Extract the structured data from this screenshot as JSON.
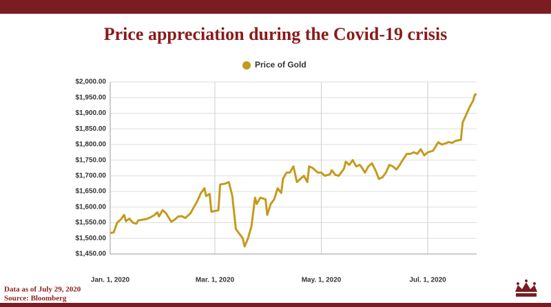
{
  "chart_data": {
    "type": "line",
    "title": "Price appreciation during the Covid-19 crisis",
    "notes": [
      "Data as of July 29, 2020",
      "Source: Bloomberg"
    ],
    "legend": "top",
    "grid": true,
    "xlim": [
      "2020-01-01",
      "2020-07-29"
    ],
    "xticks": [
      {
        "value": "2020-01-01",
        "label": "Jan. 1, 2020"
      },
      {
        "value": "2020-03-01",
        "label": "Mar. 1, 2020"
      },
      {
        "value": "2020-05-01",
        "label": "May. 1, 2020"
      },
      {
        "value": "2020-07-01",
        "label": "Jul. 1, 2020"
      }
    ],
    "ylim": [
      1450,
      2000
    ],
    "yticks": [
      {
        "value": 1450,
        "label": "$1,450.00"
      },
      {
        "value": 1500,
        "label": "$1,500.00"
      },
      {
        "value": 1550,
        "label": "$1,550.00"
      },
      {
        "value": 1600,
        "label": "$1,600.00"
      },
      {
        "value": 1650,
        "label": "$1,650.00"
      },
      {
        "value": 1700,
        "label": "$1,700.00"
      },
      {
        "value": 1750,
        "label": "$1,750.00"
      },
      {
        "value": 1800,
        "label": "$1,800.00"
      },
      {
        "value": 1850,
        "label": "$1,850.00"
      },
      {
        "value": 1900,
        "label": "$1,900.00"
      },
      {
        "value": 1950,
        "label": "$1,950.00"
      },
      {
        "value": 2000,
        "label": "$2,000.00"
      }
    ],
    "x": [
      "2020-01-01",
      "2020-01-03",
      "2020-01-05",
      "2020-01-07",
      "2020-01-09",
      "2020-01-10",
      "2020-01-12",
      "2020-01-14",
      "2020-01-16",
      "2020-01-17",
      "2020-01-20",
      "2020-01-22",
      "2020-01-24",
      "2020-01-26",
      "2020-01-28",
      "2020-01-29",
      "2020-01-31",
      "2020-02-02",
      "2020-02-05",
      "2020-02-07",
      "2020-02-09",
      "2020-02-11",
      "2020-02-13",
      "2020-02-16",
      "2020-02-18",
      "2020-02-20",
      "2020-02-22",
      "2020-02-24",
      "2020-02-25",
      "2020-02-27",
      "2020-02-28",
      "2020-03-03",
      "2020-03-04",
      "2020-03-07",
      "2020-03-09",
      "2020-03-11",
      "2020-03-13",
      "2020-03-15",
      "2020-03-17",
      "2020-03-18",
      "2020-03-20",
      "2020-03-22",
      "2020-03-24",
      "2020-03-25",
      "2020-03-27",
      "2020-03-30",
      "2020-03-31",
      "2020-04-02",
      "2020-04-04",
      "2020-04-06",
      "2020-04-08",
      "2020-04-09",
      "2020-04-11",
      "2020-04-13",
      "2020-04-15",
      "2020-04-17",
      "2020-04-19",
      "2020-04-21",
      "2020-04-23",
      "2020-04-24",
      "2020-04-26",
      "2020-04-29",
      "2020-05-01",
      "2020-05-03",
      "2020-05-06",
      "2020-05-07",
      "2020-05-09",
      "2020-05-11",
      "2020-05-14",
      "2020-05-15",
      "2020-05-17",
      "2020-05-19",
      "2020-05-21",
      "2020-05-23",
      "2020-05-24",
      "2020-05-26",
      "2020-05-28",
      "2020-05-30",
      "2020-06-01",
      "2020-06-03",
      "2020-06-05",
      "2020-06-07",
      "2020-06-09",
      "2020-06-11",
      "2020-06-13",
      "2020-06-15",
      "2020-06-16",
      "2020-06-19",
      "2020-06-21",
      "2020-06-23",
      "2020-06-25",
      "2020-06-27",
      "2020-06-29",
      "2020-07-01",
      "2020-07-04",
      "2020-07-07",
      "2020-07-09",
      "2020-07-11",
      "2020-07-13",
      "2020-07-15",
      "2020-07-17",
      "2020-07-20",
      "2020-07-21",
      "2020-07-23",
      "2020-07-25",
      "2020-07-27",
      "2020-07-28",
      "2020-07-29"
    ],
    "series": [
      {
        "name": "Price of Gold",
        "color": "#c49a1c",
        "values": [
          1517,
          1519,
          1550,
          1560,
          1575,
          1555,
          1563,
          1550,
          1547,
          1557,
          1560,
          1562,
          1567,
          1573,
          1583,
          1570,
          1590,
          1580,
          1553,
          1560,
          1570,
          1571,
          1565,
          1580,
          1600,
          1620,
          1645,
          1660,
          1635,
          1642,
          1585,
          1590,
          1672,
          1675,
          1680,
          1635,
          1530,
          1515,
          1500,
          1474,
          1500,
          1540,
          1630,
          1610,
          1630,
          1625,
          1575,
          1610,
          1625,
          1660,
          1645,
          1690,
          1710,
          1710,
          1730,
          1680,
          1690,
          1700,
          1680,
          1730,
          1725,
          1710,
          1710,
          1700,
          1705,
          1718,
          1703,
          1700,
          1723,
          1745,
          1735,
          1750,
          1730,
          1735,
          1728,
          1710,
          1730,
          1740,
          1718,
          1690,
          1695,
          1710,
          1735,
          1730,
          1720,
          1735,
          1745,
          1770,
          1770,
          1775,
          1770,
          1785,
          1765,
          1775,
          1780,
          1807,
          1800,
          1803,
          1808,
          1805,
          1812,
          1815,
          1870,
          1895,
          1920,
          1940,
          1960,
          1960
        ]
      }
    ]
  }
}
